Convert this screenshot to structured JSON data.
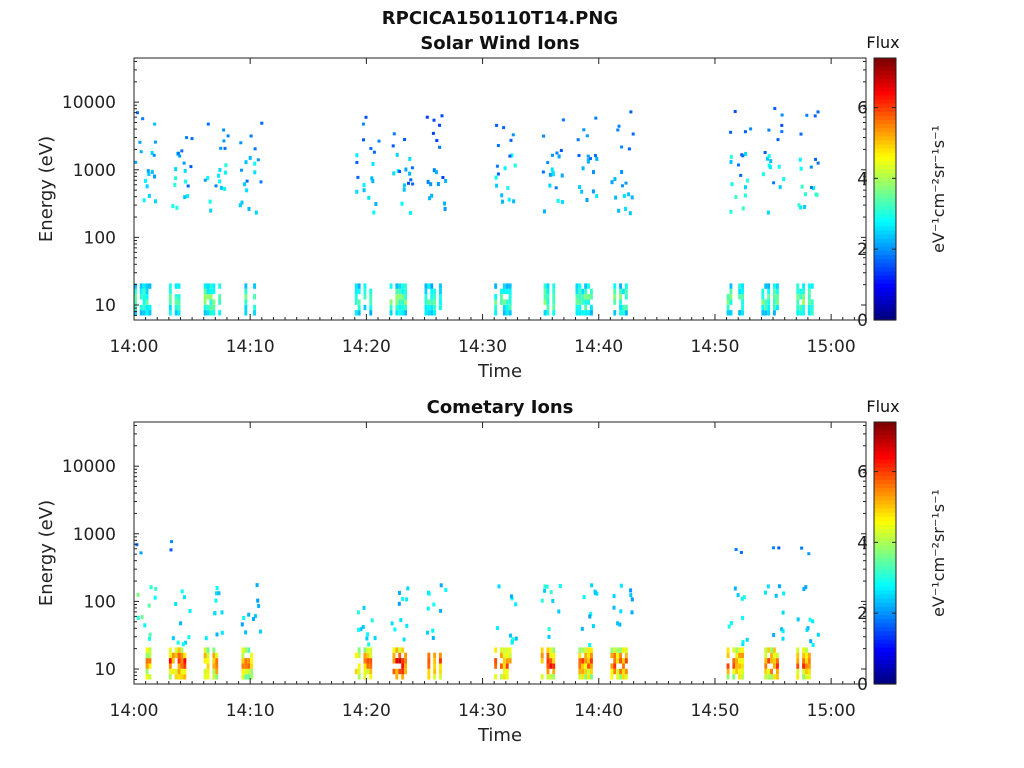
{
  "figure": {
    "title": "RPCICA150110T14.PNG"
  },
  "chart_data": [
    {
      "type": "heatmap",
      "title": "Solar Wind Ions",
      "xlabel": "Time",
      "ylabel": "Energy (eV)",
      "yscale": "log",
      "xlim": [
        "14:00",
        "15:03"
      ],
      "ylim": [
        6,
        45000
      ],
      "x_ticks": [
        "14:00",
        "14:10",
        "14:20",
        "14:30",
        "14:40",
        "14:50",
        "15:00"
      ],
      "y_ticks": [
        10,
        100,
        1000,
        10000
      ],
      "y_tick_labels": [
        "10",
        "100",
        "1000",
        "10000"
      ],
      "colorbar": {
        "label": "Flux",
        "units": "eV⁻¹cm⁻²sr⁻¹s⁻¹",
        "range": [
          0,
          7.4
        ],
        "ticks": [
          0,
          2,
          4,
          6
        ],
        "colormap": "jet"
      },
      "bursts": [
        {
          "start": "14:00",
          "lo_flux": 3.3,
          "mid_flux": 2.6,
          "high_flux": 2.0
        },
        {
          "start": "14:03",
          "lo_flux": 3.5,
          "mid_flux": 2.8,
          "high_flux": 1.8
        },
        {
          "start": "14:06",
          "lo_flux": 3.6,
          "mid_flux": 2.9,
          "high_flux": 1.8
        },
        {
          "start": "14:09",
          "lo_flux": 3.4,
          "mid_flux": 2.8,
          "high_flux": 1.8
        },
        {
          "start": "14:19",
          "lo_flux": 3.2,
          "mid_flux": 2.8,
          "high_flux": 1.7
        },
        {
          "start": "14:22",
          "lo_flux": 3.6,
          "mid_flux": 2.5,
          "high_flux": 1.6
        },
        {
          "start": "14:25",
          "lo_flux": 3.3,
          "mid_flux": 2.3,
          "high_flux": 1.6
        },
        {
          "start": "14:31",
          "lo_flux": 3.4,
          "mid_flux": 2.7,
          "high_flux": 1.8
        },
        {
          "start": "14:35",
          "lo_flux": 3.6,
          "mid_flux": 2.6,
          "high_flux": 1.8
        },
        {
          "start": "14:38",
          "lo_flux": 3.5,
          "mid_flux": 2.4,
          "high_flux": 1.8
        },
        {
          "start": "14:41",
          "lo_flux": 3.5,
          "mid_flux": 2.4,
          "high_flux": 1.8
        },
        {
          "start": "14:51",
          "lo_flux": 3.6,
          "mid_flux": 2.9,
          "high_flux": 1.7
        },
        {
          "start": "14:54",
          "lo_flux": 3.5,
          "mid_flux": 2.8,
          "high_flux": 1.7
        },
        {
          "start": "14:57",
          "lo_flux": 3.7,
          "mid_flux": 3.0,
          "high_flux": 1.9
        }
      ]
    },
    {
      "type": "heatmap",
      "title": "Cometary Ions",
      "xlabel": "Time",
      "ylabel": "Energy (eV)",
      "yscale": "log",
      "xlim": [
        "14:00",
        "15:03"
      ],
      "ylim": [
        6,
        45000
      ],
      "x_ticks": [
        "14:00",
        "14:10",
        "14:20",
        "14:30",
        "14:40",
        "14:50",
        "15:00"
      ],
      "y_ticks": [
        10,
        100,
        1000,
        10000
      ],
      "y_tick_labels": [
        "10",
        "100",
        "1000",
        "10000"
      ],
      "colorbar": {
        "label": "Flux",
        "units": "eV⁻¹cm⁻²sr⁻¹s⁻¹",
        "range": [
          0,
          7.4
        ],
        "ticks": [
          0,
          2,
          4,
          6
        ],
        "colormap": "jet"
      },
      "bursts": [
        {
          "start": "14:00",
          "lo_flux": 5.3,
          "mid_flux": 3.4,
          "high_flux": 1.9
        },
        {
          "start": "14:03",
          "lo_flux": 6.0,
          "mid_flux": 2.7,
          "high_flux": 1.8
        },
        {
          "start": "14:06",
          "lo_flux": 5.5,
          "mid_flux": 2.6,
          "high_flux": 0
        },
        {
          "start": "14:09",
          "lo_flux": 5.3,
          "mid_flux": 2.5,
          "high_flux": 0
        },
        {
          "start": "14:19",
          "lo_flux": 5.6,
          "mid_flux": 2.9,
          "high_flux": 0
        },
        {
          "start": "14:22",
          "lo_flux": 6.3,
          "mid_flux": 2.6,
          "high_flux": 0
        },
        {
          "start": "14:25",
          "lo_flux": 5.8,
          "mid_flux": 2.6,
          "high_flux": 0
        },
        {
          "start": "14:31",
          "lo_flux": 5.7,
          "mid_flux": 2.7,
          "high_flux": 0
        },
        {
          "start": "14:35",
          "lo_flux": 6.0,
          "mid_flux": 2.9,
          "high_flux": 0
        },
        {
          "start": "14:38",
          "lo_flux": 5.6,
          "mid_flux": 2.6,
          "high_flux": 0
        },
        {
          "start": "14:41",
          "lo_flux": 5.8,
          "mid_flux": 2.5,
          "high_flux": 0
        },
        {
          "start": "14:51",
          "lo_flux": 5.6,
          "mid_flux": 2.7,
          "high_flux": 1.8
        },
        {
          "start": "14:54",
          "lo_flux": 5.9,
          "mid_flux": 2.6,
          "high_flux": 1.8
        },
        {
          "start": "14:57",
          "lo_flux": 5.7,
          "mid_flux": 2.7,
          "high_flux": 1.9
        }
      ]
    }
  ]
}
